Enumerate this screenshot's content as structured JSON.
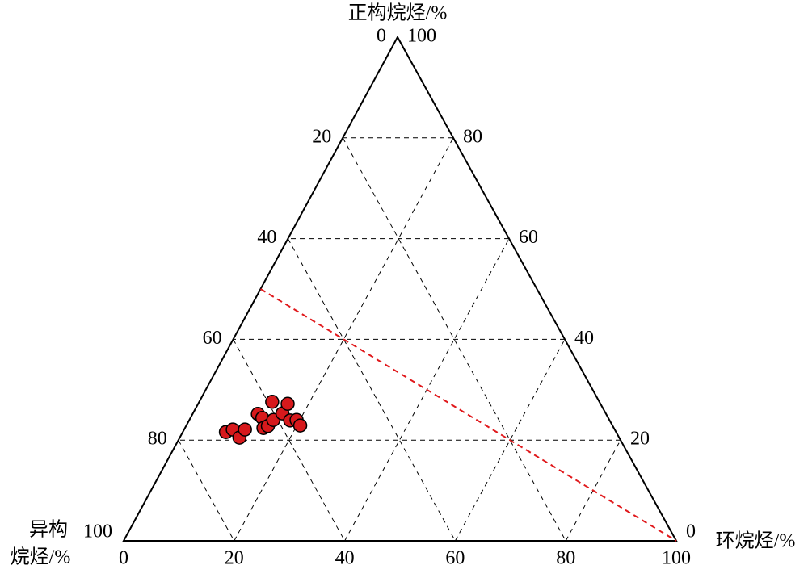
{
  "chart_data": {
    "type": "ternary",
    "top_axis_title": "正构烷烃/%",
    "left_axis_title": [
      "异构",
      "烷烃/%"
    ],
    "right_axis_title": "环烷烃/%",
    "left_ticks": [
      0,
      20,
      40,
      60,
      80,
      100
    ],
    "right_ticks": [
      100,
      80,
      60,
      40,
      20,
      0
    ],
    "bottom_ticks": [
      0,
      20,
      40,
      60,
      80,
      100
    ],
    "grid": true,
    "series": [
      {
        "color": "#d7191c",
        "normal": [
          21.6,
          22.1,
          20.5,
          22.1,
          25.2,
          24.4,
          22.4,
          22.8,
          27.6,
          24.0,
          25.3,
          27.2,
          23.9,
          24.0,
          22.9
        ],
        "iso": [
          70.6,
          69.1,
          68.7,
          66.9,
          63.0,
          62.6,
          63.4,
          62.4,
          59.2,
          60.8,
          58.5,
          56.6,
          57.8,
          56.6,
          56.5
        ],
        "cyclo": [
          7.8,
          8.8,
          10.8,
          11.0,
          11.8,
          13.0,
          14.2,
          14.8,
          13.2,
          15.2,
          16.2,
          16.2,
          18.3,
          19.4,
          20.6
        ]
      }
    ],
    "reference_line": {
      "color": "#e0191c",
      "normal": [
        50,
        0
      ],
      "iso": [
        50,
        0
      ],
      "cyclo": [
        0,
        100
      ]
    }
  }
}
